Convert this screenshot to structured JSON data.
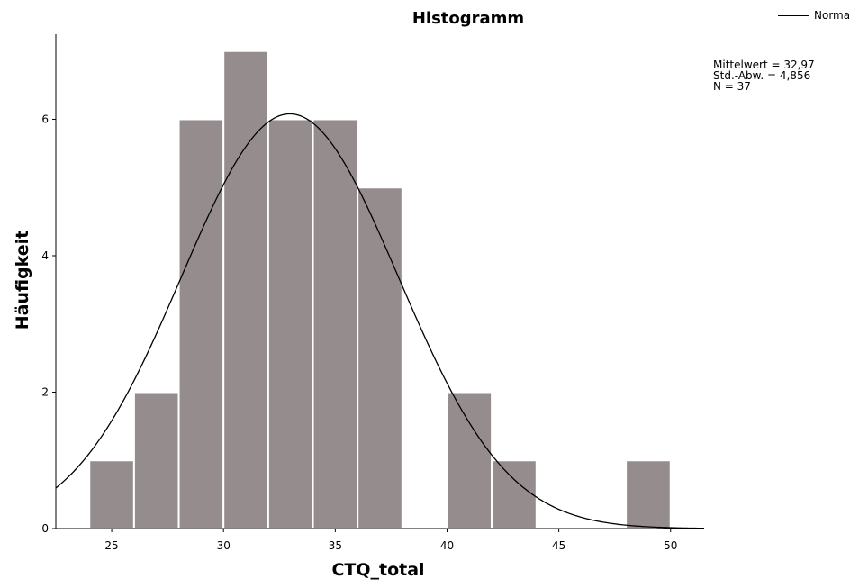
{
  "chart_data": {
    "type": "bar",
    "title": "Histogramm",
    "xlabel": "CTQ_total",
    "ylabel": "Häufigkeit",
    "bin_width": 2,
    "bins": [
      {
        "start": 24,
        "end": 26,
        "count": 1
      },
      {
        "start": 26,
        "end": 28,
        "count": 2
      },
      {
        "start": 28,
        "end": 30,
        "count": 6
      },
      {
        "start": 30,
        "end": 32,
        "count": 7
      },
      {
        "start": 32,
        "end": 34,
        "count": 6
      },
      {
        "start": 34,
        "end": 36,
        "count": 6
      },
      {
        "start": 36,
        "end": 38,
        "count": 5
      },
      {
        "start": 38,
        "end": 40,
        "count": 0
      },
      {
        "start": 40,
        "end": 42,
        "count": 2
      },
      {
        "start": 42,
        "end": 44,
        "count": 1
      },
      {
        "start": 44,
        "end": 46,
        "count": 0
      },
      {
        "start": 46,
        "end": 48,
        "count": 0
      },
      {
        "start": 48,
        "end": 50,
        "count": 1
      }
    ],
    "xlim": [
      22.5,
      51.5
    ],
    "ylim": [
      0,
      7.3
    ],
    "x_ticks": [
      25,
      30,
      35,
      40,
      45,
      50
    ],
    "y_ticks": [
      0,
      2,
      4,
      6
    ],
    "normal_curve": {
      "mean": 32.97,
      "sd": 4.856,
      "n": 37
    },
    "legend": [
      {
        "label": "Normal",
        "marker": "line",
        "color": "#000000"
      }
    ],
    "legend_position": "top-right",
    "stats_text": [
      "Mittelwert = 32,97",
      "Std.-Abw. = 4,856",
      "N = 37"
    ],
    "grid": false,
    "colors": {
      "bar_fill": "#958d8d",
      "bar_edge": "#ffffff",
      "curve": "#000000"
    }
  }
}
